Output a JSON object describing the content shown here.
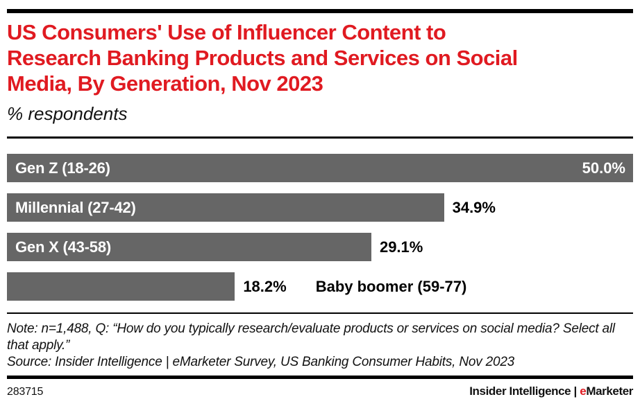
{
  "header": {
    "title_lines": [
      "US Consumers' Use of Influencer Content to",
      "Research Banking Products and Services on Social",
      "Media, By Generation, Nov 2023"
    ],
    "subtitle": "% respondents"
  },
  "chart_data": {
    "type": "bar",
    "orientation": "horizontal",
    "title": "US Consumers' Use of Influencer Content to Research Banking Products and Services on Social Media, By Generation, Nov 2023",
    "ylabel": "",
    "xlabel": "% respondents",
    "xlim": [
      0,
      50
    ],
    "grid": false,
    "legend": "none",
    "bar_color": "#666666",
    "categories": [
      "Gen Z (18-26)",
      "Millennial (27-42)",
      "Gen X (43-58)",
      "Baby boomer (59-77)"
    ],
    "values": [
      50.0,
      34.9,
      29.1,
      18.2
    ],
    "rows": [
      {
        "label": "Gen Z (18-26)",
        "value": 50.0,
        "value_label": "50.0%",
        "label_placement": "inside",
        "value_placement": "inside"
      },
      {
        "label": "Millennial (27-42)",
        "value": 34.9,
        "value_label": "34.9%",
        "label_placement": "inside",
        "value_placement": "outside"
      },
      {
        "label": "Gen X (43-58)",
        "value": 29.1,
        "value_label": "29.1%",
        "label_placement": "inside",
        "value_placement": "outside"
      },
      {
        "label": "Baby boomer (59-77)",
        "value": 18.2,
        "value_label": "18.2%",
        "label_placement": "outside",
        "value_placement": "outside"
      }
    ]
  },
  "footnote": {
    "note_line": "Note: n=1,488, Q: “How do you typically research/evaluate products or services on social media? Select all that apply.”",
    "source_line": "Source: Insider Intelligence | eMarketer Survey, US Banking Consumer Habits, Nov 2023"
  },
  "footer": {
    "chart_id": "283715",
    "brand_name": "Insider Intelligence",
    "brand_separator": " | ",
    "brand_emarketer_e": "e",
    "brand_emarketer_rest": "Marketer"
  },
  "colors": {
    "accent_red": "#e01a21",
    "bar_gray": "#666666",
    "text_black": "#111111",
    "rule_black": "#000000"
  }
}
